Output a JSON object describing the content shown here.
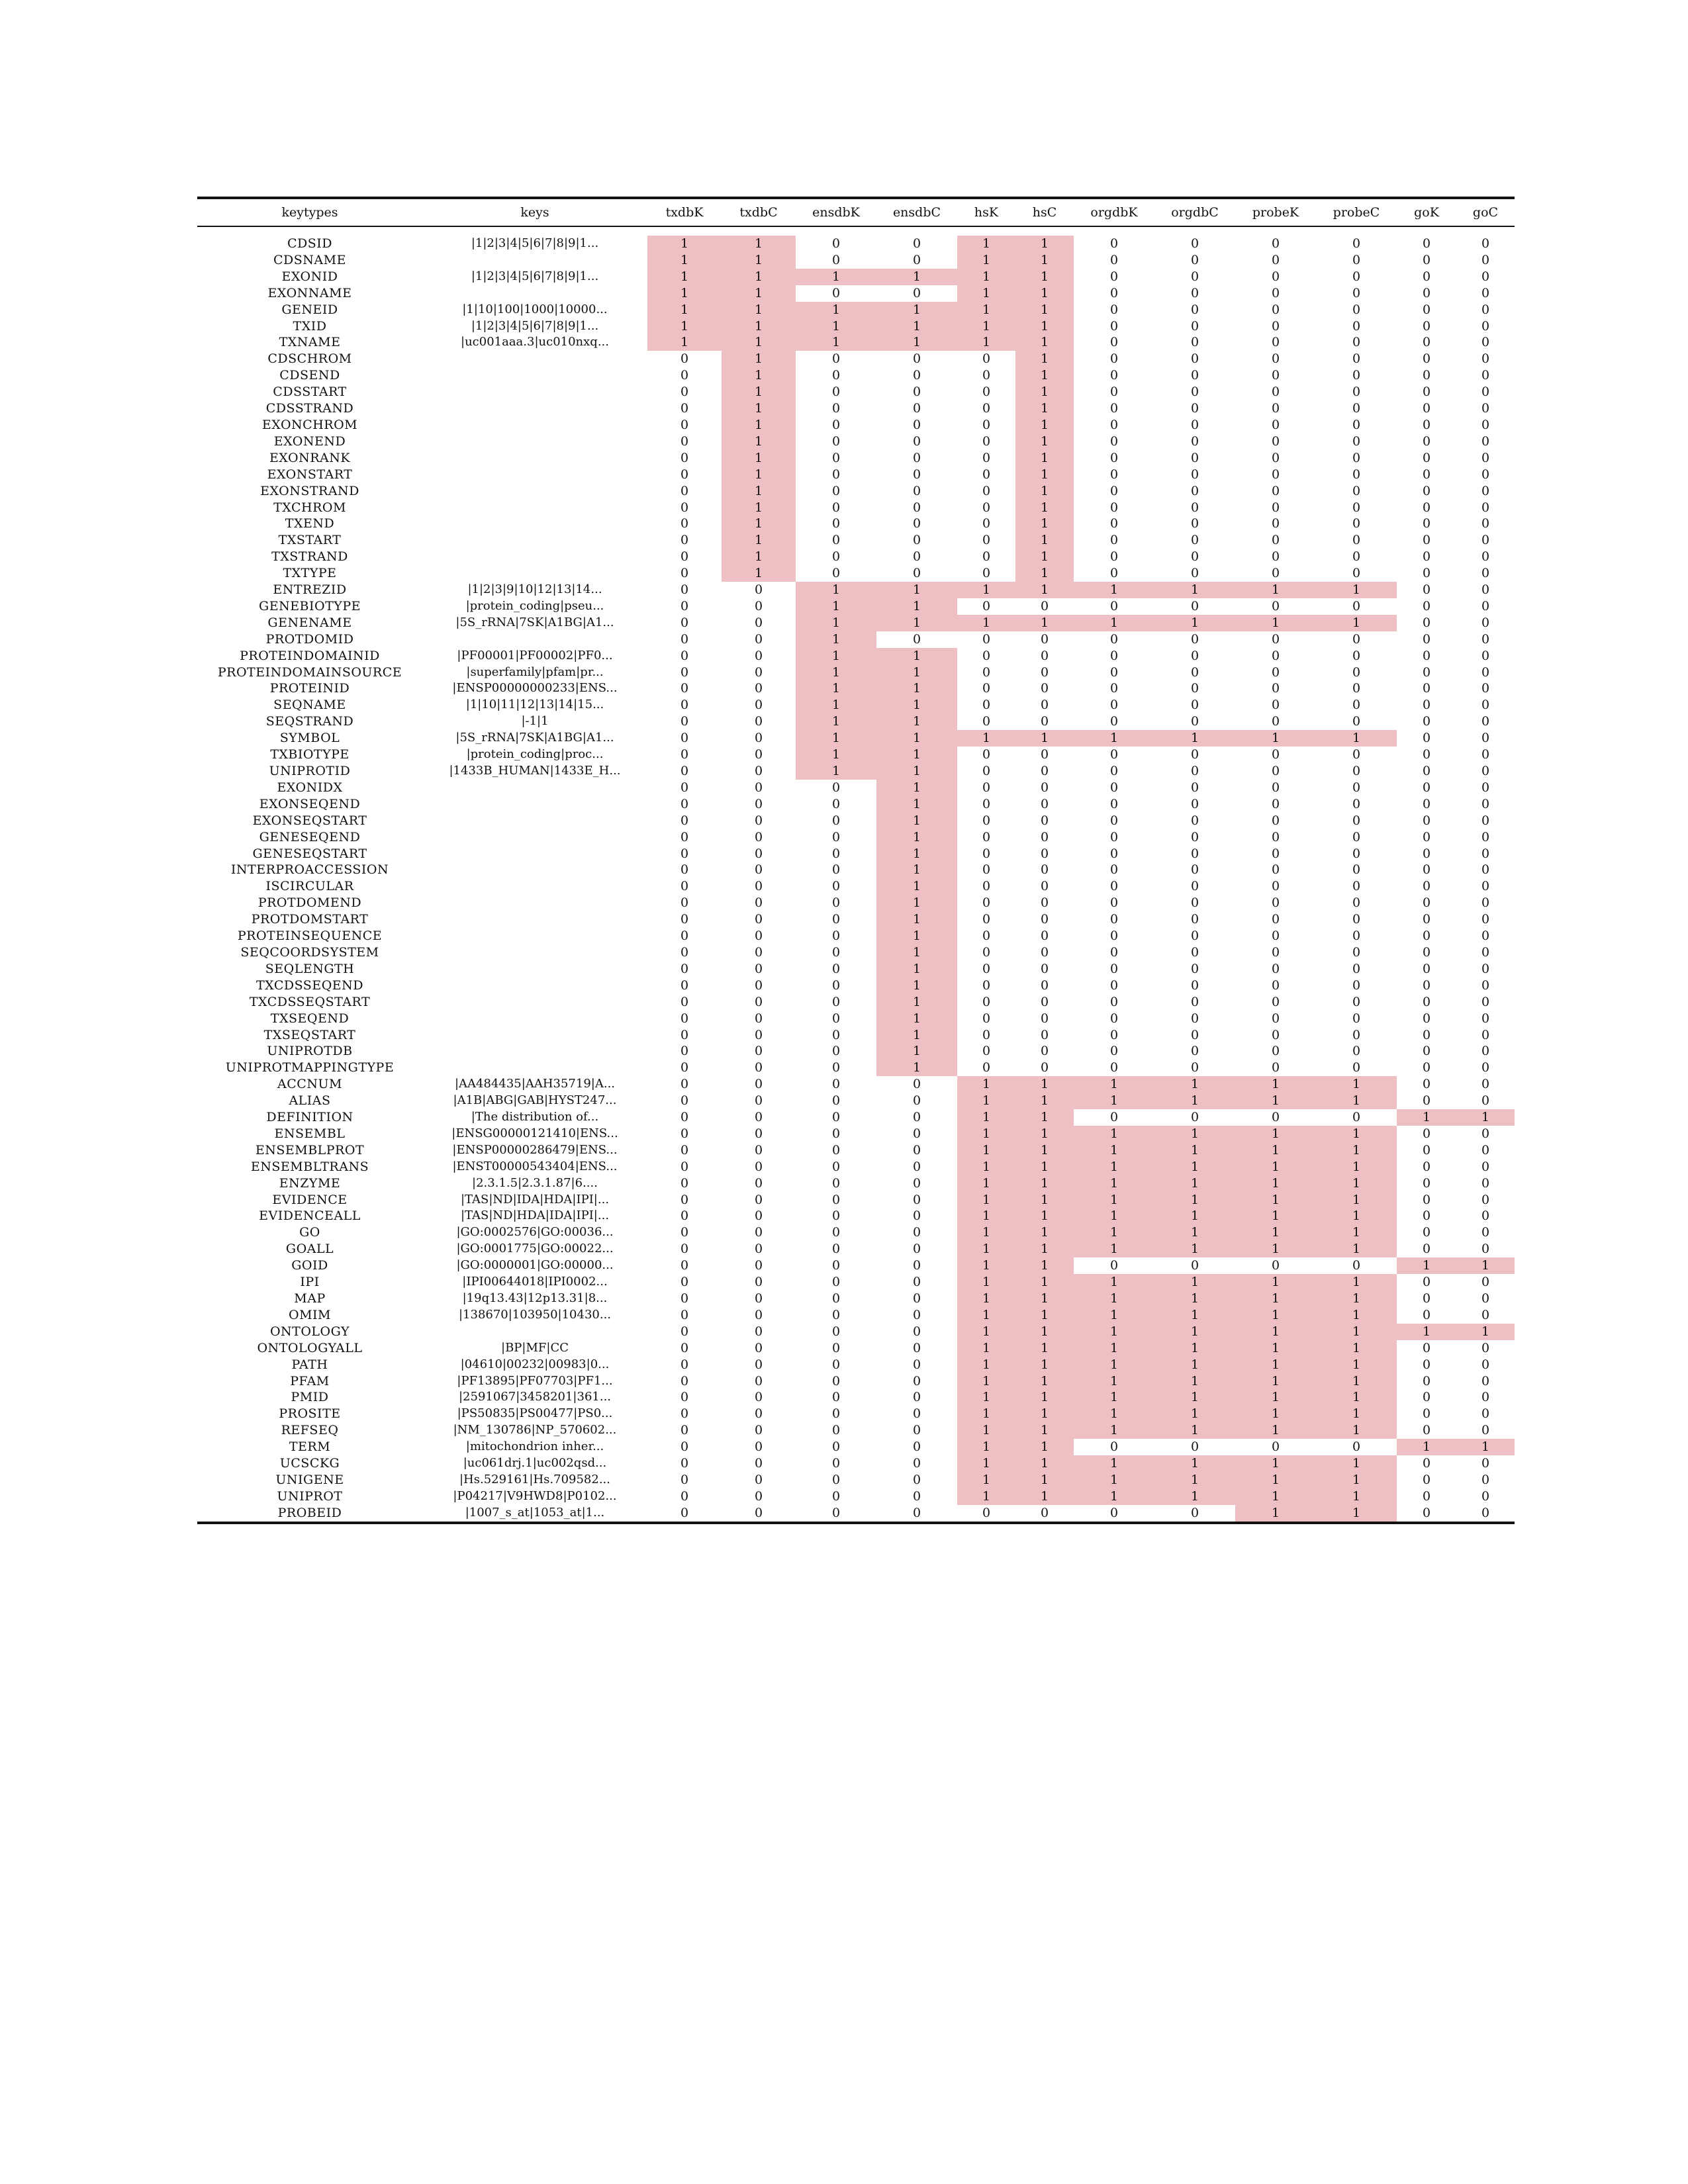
{
  "table": {
    "columns": [
      "keytypes",
      "keys",
      "txdbK",
      "txdbC",
      "ensdbK",
      "ensdbC",
      "hsK",
      "hsC",
      "orgdbK",
      "orgdbC",
      "probeK",
      "probeC",
      "goK",
      "goC"
    ],
    "rows": [
      [
        "CDSID",
        "|1|2|3|4|5|6|7|8|9|1...",
        "1",
        "1",
        "0",
        "0",
        "1",
        "1",
        "0",
        "0",
        "0",
        "0",
        "0",
        "0"
      ],
      [
        "CDSNAME",
        "",
        "1",
        "1",
        "0",
        "0",
        "1",
        "1",
        "0",
        "0",
        "0",
        "0",
        "0",
        "0"
      ],
      [
        "EXONID",
        "|1|2|3|4|5|6|7|8|9|1...",
        "1",
        "1",
        "1",
        "1",
        "1",
        "1",
        "0",
        "0",
        "0",
        "0",
        "0",
        "0"
      ],
      [
        "EXONNAME",
        "",
        "1",
        "1",
        "0",
        "0",
        "1",
        "1",
        "0",
        "0",
        "0",
        "0",
        "0",
        "0"
      ],
      [
        "GENEID",
        "|1|10|100|1000|10000...",
        "1",
        "1",
        "1",
        "1",
        "1",
        "1",
        "0",
        "0",
        "0",
        "0",
        "0",
        "0"
      ],
      [
        "TXID",
        "|1|2|3|4|5|6|7|8|9|1...",
        "1",
        "1",
        "1",
        "1",
        "1",
        "1",
        "0",
        "0",
        "0",
        "0",
        "0",
        "0"
      ],
      [
        "TXNAME",
        "|uc001aaa.3|uc010nxq...",
        "1",
        "1",
        "1",
        "1",
        "1",
        "1",
        "0",
        "0",
        "0",
        "0",
        "0",
        "0"
      ],
      [
        "CDSCHROM",
        "",
        "0",
        "1",
        "0",
        "0",
        "0",
        "1",
        "0",
        "0",
        "0",
        "0",
        "0",
        "0"
      ],
      [
        "CDSEND",
        "",
        "0",
        "1",
        "0",
        "0",
        "0",
        "1",
        "0",
        "0",
        "0",
        "0",
        "0",
        "0"
      ],
      [
        "CDSSTART",
        "",
        "0",
        "1",
        "0",
        "0",
        "0",
        "1",
        "0",
        "0",
        "0",
        "0",
        "0",
        "0"
      ],
      [
        "CDSSTRAND",
        "",
        "0",
        "1",
        "0",
        "0",
        "0",
        "1",
        "0",
        "0",
        "0",
        "0",
        "0",
        "0"
      ],
      [
        "EXONCHROM",
        "",
        "0",
        "1",
        "0",
        "0",
        "0",
        "1",
        "0",
        "0",
        "0",
        "0",
        "0",
        "0"
      ],
      [
        "EXONEND",
        "",
        "0",
        "1",
        "0",
        "0",
        "0",
        "1",
        "0",
        "0",
        "0",
        "0",
        "0",
        "0"
      ],
      [
        "EXONRANK",
        "",
        "0",
        "1",
        "0",
        "0",
        "0",
        "1",
        "0",
        "0",
        "0",
        "0",
        "0",
        "0"
      ],
      [
        "EXONSTART",
        "",
        "0",
        "1",
        "0",
        "0",
        "0",
        "1",
        "0",
        "0",
        "0",
        "0",
        "0",
        "0"
      ],
      [
        "EXONSTRAND",
        "",
        "0",
        "1",
        "0",
        "0",
        "0",
        "1",
        "0",
        "0",
        "0",
        "0",
        "0",
        "0"
      ],
      [
        "TXCHROM",
        "",
        "0",
        "1",
        "0",
        "0",
        "0",
        "1",
        "0",
        "0",
        "0",
        "0",
        "0",
        "0"
      ],
      [
        "TXEND",
        "",
        "0",
        "1",
        "0",
        "0",
        "0",
        "1",
        "0",
        "0",
        "0",
        "0",
        "0",
        "0"
      ],
      [
        "TXSTART",
        "",
        "0",
        "1",
        "0",
        "0",
        "0",
        "1",
        "0",
        "0",
        "0",
        "0",
        "0",
        "0"
      ],
      [
        "TXSTRAND",
        "",
        "0",
        "1",
        "0",
        "0",
        "0",
        "1",
        "0",
        "0",
        "0",
        "0",
        "0",
        "0"
      ],
      [
        "TXTYPE",
        "",
        "0",
        "1",
        "0",
        "0",
        "0",
        "1",
        "0",
        "0",
        "0",
        "0",
        "0",
        "0"
      ],
      [
        "ENTREZID",
        "|1|2|3|9|10|12|13|14...",
        "0",
        "0",
        "1",
        "1",
        "1",
        "1",
        "1",
        "1",
        "1",
        "1",
        "0",
        "0"
      ],
      [
        "GENEBIOTYPE",
        "|protein_coding|pseu...",
        "0",
        "0",
        "1",
        "1",
        "0",
        "0",
        "0",
        "0",
        "0",
        "0",
        "0",
        "0"
      ],
      [
        "GENENAME",
        "|5S_rRNA|7SK|A1BG|A1...",
        "0",
        "0",
        "1",
        "1",
        "1",
        "1",
        "1",
        "1",
        "1",
        "1",
        "0",
        "0"
      ],
      [
        "PROTDOMID",
        "",
        "0",
        "0",
        "1",
        "0",
        "0",
        "0",
        "0",
        "0",
        "0",
        "0",
        "0",
        "0"
      ],
      [
        "PROTEINDOMAINID",
        "|PF00001|PF00002|PF0...",
        "0",
        "0",
        "1",
        "1",
        "0",
        "0",
        "0",
        "0",
        "0",
        "0",
        "0",
        "0"
      ],
      [
        "PROTEINDOMAINSOURCE",
        "|superfamily|pfam|pr...",
        "0",
        "0",
        "1",
        "1",
        "0",
        "0",
        "0",
        "0",
        "0",
        "0",
        "0",
        "0"
      ],
      [
        "PROTEINID",
        "|ENSP00000000233|ENS...",
        "0",
        "0",
        "1",
        "1",
        "0",
        "0",
        "0",
        "0",
        "0",
        "0",
        "0",
        "0"
      ],
      [
        "SEQNAME",
        "|1|10|11|12|13|14|15...",
        "0",
        "0",
        "1",
        "1",
        "0",
        "0",
        "0",
        "0",
        "0",
        "0",
        "0",
        "0"
      ],
      [
        "SEQSTRAND",
        "|-1|1",
        "0",
        "0",
        "1",
        "1",
        "0",
        "0",
        "0",
        "0",
        "0",
        "0",
        "0",
        "0"
      ],
      [
        "SYMBOL",
        "|5S_rRNA|7SK|A1BG|A1...",
        "0",
        "0",
        "1",
        "1",
        "1",
        "1",
        "1",
        "1",
        "1",
        "1",
        "0",
        "0"
      ],
      [
        "TXBIOTYPE",
        "|protein_coding|proc...",
        "0",
        "0",
        "1",
        "1",
        "0",
        "0",
        "0",
        "0",
        "0",
        "0",
        "0",
        "0"
      ],
      [
        "UNIPROTID",
        "|1433B_HUMAN|1433E_H...",
        "0",
        "0",
        "1",
        "1",
        "0",
        "0",
        "0",
        "0",
        "0",
        "0",
        "0",
        "0"
      ],
      [
        "EXONIDX",
        "",
        "0",
        "0",
        "0",
        "1",
        "0",
        "0",
        "0",
        "0",
        "0",
        "0",
        "0",
        "0"
      ],
      [
        "EXONSEQEND",
        "",
        "0",
        "0",
        "0",
        "1",
        "0",
        "0",
        "0",
        "0",
        "0",
        "0",
        "0",
        "0"
      ],
      [
        "EXONSEQSTART",
        "",
        "0",
        "0",
        "0",
        "1",
        "0",
        "0",
        "0",
        "0",
        "0",
        "0",
        "0",
        "0"
      ],
      [
        "GENESEQEND",
        "",
        "0",
        "0",
        "0",
        "1",
        "0",
        "0",
        "0",
        "0",
        "0",
        "0",
        "0",
        "0"
      ],
      [
        "GENESEQSTART",
        "",
        "0",
        "0",
        "0",
        "1",
        "0",
        "0",
        "0",
        "0",
        "0",
        "0",
        "0",
        "0"
      ],
      [
        "INTERPROACCESSION",
        "",
        "0",
        "0",
        "0",
        "1",
        "0",
        "0",
        "0",
        "0",
        "0",
        "0",
        "0",
        "0"
      ],
      [
        "ISCIRCULAR",
        "",
        "0",
        "0",
        "0",
        "1",
        "0",
        "0",
        "0",
        "0",
        "0",
        "0",
        "0",
        "0"
      ],
      [
        "PROTDOMEND",
        "",
        "0",
        "0",
        "0",
        "1",
        "0",
        "0",
        "0",
        "0",
        "0",
        "0",
        "0",
        "0"
      ],
      [
        "PROTDOMSTART",
        "",
        "0",
        "0",
        "0",
        "1",
        "0",
        "0",
        "0",
        "0",
        "0",
        "0",
        "0",
        "0"
      ],
      [
        "PROTEINSEQUENCE",
        "",
        "0",
        "0",
        "0",
        "1",
        "0",
        "0",
        "0",
        "0",
        "0",
        "0",
        "0",
        "0"
      ],
      [
        "SEQCOORDSYSTEM",
        "",
        "0",
        "0",
        "0",
        "1",
        "0",
        "0",
        "0",
        "0",
        "0",
        "0",
        "0",
        "0"
      ],
      [
        "SEQLENGTH",
        "",
        "0",
        "0",
        "0",
        "1",
        "0",
        "0",
        "0",
        "0",
        "0",
        "0",
        "0",
        "0"
      ],
      [
        "TXCDSSEQEND",
        "",
        "0",
        "0",
        "0",
        "1",
        "0",
        "0",
        "0",
        "0",
        "0",
        "0",
        "0",
        "0"
      ],
      [
        "TXCDSSEQSTART",
        "",
        "0",
        "0",
        "0",
        "1",
        "0",
        "0",
        "0",
        "0",
        "0",
        "0",
        "0",
        "0"
      ],
      [
        "TXSEQEND",
        "",
        "0",
        "0",
        "0",
        "1",
        "0",
        "0",
        "0",
        "0",
        "0",
        "0",
        "0",
        "0"
      ],
      [
        "TXSEQSTART",
        "",
        "0",
        "0",
        "0",
        "1",
        "0",
        "0",
        "0",
        "0",
        "0",
        "0",
        "0",
        "0"
      ],
      [
        "UNIPROTDB",
        "",
        "0",
        "0",
        "0",
        "1",
        "0",
        "0",
        "0",
        "0",
        "0",
        "0",
        "0",
        "0"
      ],
      [
        "UNIPROTMAPPINGTYPE",
        "",
        "0",
        "0",
        "0",
        "1",
        "0",
        "0",
        "0",
        "0",
        "0",
        "0",
        "0",
        "0"
      ],
      [
        "ACCNUM",
        "|AA484435|AAH35719|A...",
        "0",
        "0",
        "0",
        "0",
        "1",
        "1",
        "1",
        "1",
        "1",
        "1",
        "0",
        "0"
      ],
      [
        "ALIAS",
        "|A1B|ABG|GAB|HYST247...",
        "0",
        "0",
        "0",
        "0",
        "1",
        "1",
        "1",
        "1",
        "1",
        "1",
        "0",
        "0"
      ],
      [
        "DEFINITION",
        "|The distribution of...",
        "0",
        "0",
        "0",
        "0",
        "1",
        "1",
        "0",
        "0",
        "0",
        "0",
        "1",
        "1"
      ],
      [
        "ENSEMBL",
        "|ENSG00000121410|ENS...",
        "0",
        "0",
        "0",
        "0",
        "1",
        "1",
        "1",
        "1",
        "1",
        "1",
        "0",
        "0"
      ],
      [
        "ENSEMBLPROT",
        "|ENSP00000286479|ENS...",
        "0",
        "0",
        "0",
        "0",
        "1",
        "1",
        "1",
        "1",
        "1",
        "1",
        "0",
        "0"
      ],
      [
        "ENSEMBLTRANS",
        "|ENST00000543404|ENS...",
        "0",
        "0",
        "0",
        "0",
        "1",
        "1",
        "1",
        "1",
        "1",
        "1",
        "0",
        "0"
      ],
      [
        "ENZYME",
        "|2.3.1.5|2.3.1.87|6....",
        "0",
        "0",
        "0",
        "0",
        "1",
        "1",
        "1",
        "1",
        "1",
        "1",
        "0",
        "0"
      ],
      [
        "EVIDENCE",
        "|TAS|ND|IDA|HDA|IPI|...",
        "0",
        "0",
        "0",
        "0",
        "1",
        "1",
        "1",
        "1",
        "1",
        "1",
        "0",
        "0"
      ],
      [
        "EVIDENCEALL",
        "|TAS|ND|HDA|IDA|IPI|...",
        "0",
        "0",
        "0",
        "0",
        "1",
        "1",
        "1",
        "1",
        "1",
        "1",
        "0",
        "0"
      ],
      [
        "GO",
        "|GO:0002576|GO:00036...",
        "0",
        "0",
        "0",
        "0",
        "1",
        "1",
        "1",
        "1",
        "1",
        "1",
        "0",
        "0"
      ],
      [
        "GOALL",
        "|GO:0001775|GO:00022...",
        "0",
        "0",
        "0",
        "0",
        "1",
        "1",
        "1",
        "1",
        "1",
        "1",
        "0",
        "0"
      ],
      [
        "GOID",
        "|GO:0000001|GO:00000...",
        "0",
        "0",
        "0",
        "0",
        "1",
        "1",
        "0",
        "0",
        "0",
        "0",
        "1",
        "1"
      ],
      [
        "IPI",
        "|IPI00644018|IPI0002...",
        "0",
        "0",
        "0",
        "0",
        "1",
        "1",
        "1",
        "1",
        "1",
        "1",
        "0",
        "0"
      ],
      [
        "MAP",
        "|19q13.43|12p13.31|8...",
        "0",
        "0",
        "0",
        "0",
        "1",
        "1",
        "1",
        "1",
        "1",
        "1",
        "0",
        "0"
      ],
      [
        "OMIM",
        "|138670|103950|10430...",
        "0",
        "0",
        "0",
        "0",
        "1",
        "1",
        "1",
        "1",
        "1",
        "1",
        "0",
        "0"
      ],
      [
        "ONTOLOGY",
        "",
        "0",
        "0",
        "0",
        "0",
        "1",
        "1",
        "1",
        "1",
        "1",
        "1",
        "1",
        "1"
      ],
      [
        "ONTOLOGYALL",
        "|BP|MF|CC",
        "0",
        "0",
        "0",
        "0",
        "1",
        "1",
        "1",
        "1",
        "1",
        "1",
        "0",
        "0"
      ],
      [
        "PATH",
        "|04610|00232|00983|0...",
        "0",
        "0",
        "0",
        "0",
        "1",
        "1",
        "1",
        "1",
        "1",
        "1",
        "0",
        "0"
      ],
      [
        "PFAM",
        "|PF13895|PF07703|PF1...",
        "0",
        "0",
        "0",
        "0",
        "1",
        "1",
        "1",
        "1",
        "1",
        "1",
        "0",
        "0"
      ],
      [
        "PMID",
        "|2591067|3458201|361...",
        "0",
        "0",
        "0",
        "0",
        "1",
        "1",
        "1",
        "1",
        "1",
        "1",
        "0",
        "0"
      ],
      [
        "PROSITE",
        "|PS50835|PS00477|PS0...",
        "0",
        "0",
        "0",
        "0",
        "1",
        "1",
        "1",
        "1",
        "1",
        "1",
        "0",
        "0"
      ],
      [
        "REFSEQ",
        "|NM_130786|NP_570602...",
        "0",
        "0",
        "0",
        "0",
        "1",
        "1",
        "1",
        "1",
        "1",
        "1",
        "0",
        "0"
      ],
      [
        "TERM",
        "|mitochondrion inher...",
        "0",
        "0",
        "0",
        "0",
        "1",
        "1",
        "0",
        "0",
        "0",
        "0",
        "1",
        "1"
      ],
      [
        "UCSCKG",
        "|uc061drj.1|uc002qsd...",
        "0",
        "0",
        "0",
        "0",
        "1",
        "1",
        "1",
        "1",
        "1",
        "1",
        "0",
        "0"
      ],
      [
        "UNIGENE",
        "|Hs.529161|Hs.709582...",
        "0",
        "0",
        "0",
        "0",
        "1",
        "1",
        "1",
        "1",
        "1",
        "1",
        "0",
        "0"
      ],
      [
        "UNIPROT",
        "|P04217|V9HWD8|P0102...",
        "0",
        "0",
        "0",
        "0",
        "1",
        "1",
        "1",
        "1",
        "1",
        "1",
        "0",
        "0"
      ],
      [
        "PROBEID",
        "|1007_s_at|1053_at|1...",
        "0",
        "0",
        "0",
        "0",
        "0",
        "0",
        "0",
        "0",
        "1",
        "1",
        "0",
        "0"
      ]
    ]
  },
  "colors": {
    "highlight": "#efc0c3",
    "rule": "#111111"
  }
}
